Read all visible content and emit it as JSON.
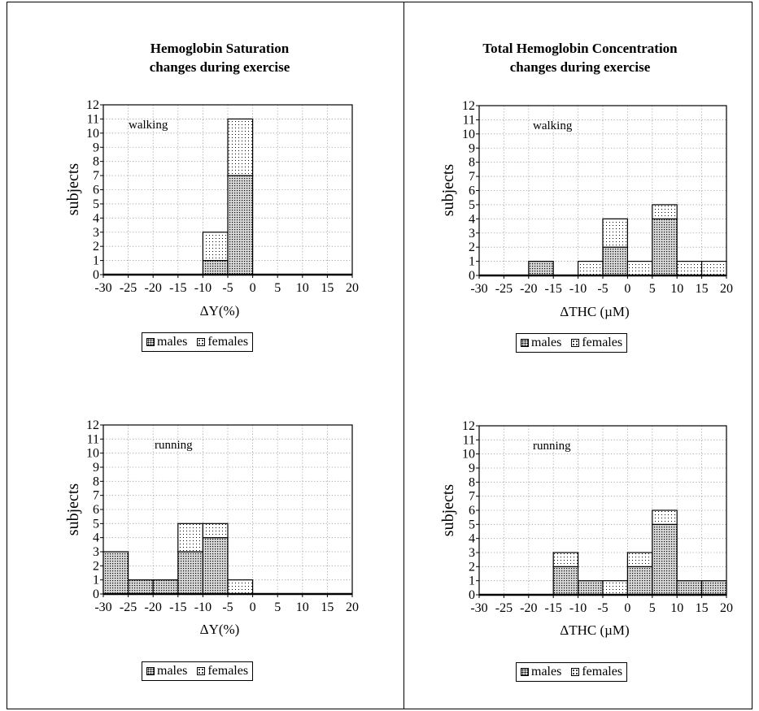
{
  "titles": {
    "left": [
      "Hemoglobin Saturation",
      "changes during exercise"
    ],
    "right": [
      "Total Hemoglobin Concentration",
      "changes during exercise"
    ]
  },
  "legend": {
    "males": "males",
    "females": "females"
  },
  "colors": {
    "axis": "#000000",
    "grid": "#9a9a9a",
    "male_fill": "#d8d8d8",
    "female_fill": "#ffffff"
  },
  "chart_data": [
    {
      "type": "bar",
      "stacked": true,
      "panel": "walking-saturation",
      "annotation": "walking",
      "xlabel": "ΔY(%)",
      "ylabel": "subjects",
      "bins": [
        -30,
        -25,
        -20,
        -15,
        -10,
        -5,
        0,
        5,
        10,
        15
      ],
      "bin_width": 5,
      "series": [
        {
          "name": "males",
          "values": [
            0,
            0,
            0,
            0,
            1,
            7,
            0,
            0,
            0,
            0
          ]
        },
        {
          "name": "females",
          "values": [
            0,
            0,
            0,
            0,
            2,
            4,
            0,
            0,
            0,
            0
          ]
        }
      ],
      "xlim": [
        -30,
        20
      ],
      "ylim": [
        0,
        12
      ],
      "xticks": [
        -30,
        -25,
        -20,
        -15,
        -10,
        -5,
        0,
        5,
        10,
        15,
        20
      ],
      "yticks": [
        0,
        1,
        2,
        3,
        4,
        5,
        6,
        7,
        8,
        9,
        10,
        11,
        12
      ],
      "grid": true,
      "legend_position": "bottom-center"
    },
    {
      "type": "bar",
      "stacked": true,
      "panel": "walking-thc",
      "annotation": "walking",
      "xlabel": "ΔTHC (µM)",
      "ylabel": "subjects",
      "bins": [
        -30,
        -25,
        -20,
        -15,
        -10,
        -5,
        0,
        5,
        10,
        15
      ],
      "bin_width": 5,
      "series": [
        {
          "name": "males",
          "values": [
            0,
            0,
            1,
            0,
            0,
            2,
            0,
            4,
            0,
            0
          ]
        },
        {
          "name": "females",
          "values": [
            0,
            0,
            0,
            0,
            1,
            2,
            1,
            1,
            1,
            1
          ]
        }
      ],
      "xlim": [
        -30,
        20
      ],
      "ylim": [
        0,
        12
      ],
      "xticks": [
        -30,
        -25,
        -20,
        -15,
        -10,
        -5,
        0,
        5,
        10,
        15,
        20
      ],
      "yticks": [
        0,
        1,
        2,
        3,
        4,
        5,
        6,
        7,
        8,
        9,
        10,
        11,
        12
      ],
      "grid": true,
      "legend_position": "bottom-center"
    },
    {
      "type": "bar",
      "stacked": true,
      "panel": "running-saturation",
      "annotation": "running",
      "xlabel": "ΔY(%)",
      "ylabel": "subjects",
      "bins": [
        -30,
        -25,
        -20,
        -15,
        -10,
        -5,
        0,
        5,
        10,
        15
      ],
      "bin_width": 5,
      "series": [
        {
          "name": "males",
          "values": [
            3,
            1,
            1,
            3,
            4,
            0,
            0,
            0,
            0,
            0
          ]
        },
        {
          "name": "females",
          "values": [
            0,
            0,
            0,
            2,
            1,
            1,
            0,
            0,
            0,
            0
          ]
        }
      ],
      "xlim": [
        -30,
        20
      ],
      "ylim": [
        0,
        12
      ],
      "xticks": [
        -30,
        -25,
        -20,
        -15,
        -10,
        -5,
        0,
        5,
        10,
        15,
        20
      ],
      "yticks": [
        0,
        1,
        2,
        3,
        4,
        5,
        6,
        7,
        8,
        9,
        10,
        11,
        12
      ],
      "grid": true,
      "legend_position": "bottom-center"
    },
    {
      "type": "bar",
      "stacked": true,
      "panel": "running-thc",
      "annotation": "running",
      "xlabel": "ΔTHC (µM)",
      "ylabel": "subjects",
      "bins": [
        -30,
        -25,
        -20,
        -15,
        -10,
        -5,
        0,
        5,
        10,
        15
      ],
      "bin_width": 5,
      "series": [
        {
          "name": "males",
          "values": [
            0,
            0,
            0,
            2,
            1,
            0,
            2,
            5,
            1,
            1
          ]
        },
        {
          "name": "females",
          "values": [
            0,
            0,
            0,
            1,
            0,
            1,
            1,
            1,
            0,
            0
          ]
        }
      ],
      "xlim": [
        -30,
        20
      ],
      "ylim": [
        0,
        12
      ],
      "xticks": [
        -30,
        -25,
        -20,
        -15,
        -10,
        -5,
        0,
        5,
        10,
        15,
        20
      ],
      "yticks": [
        0,
        1,
        2,
        3,
        4,
        5,
        6,
        7,
        8,
        9,
        10,
        11,
        12
      ],
      "grid": true,
      "legend_position": "bottom-center"
    }
  ]
}
